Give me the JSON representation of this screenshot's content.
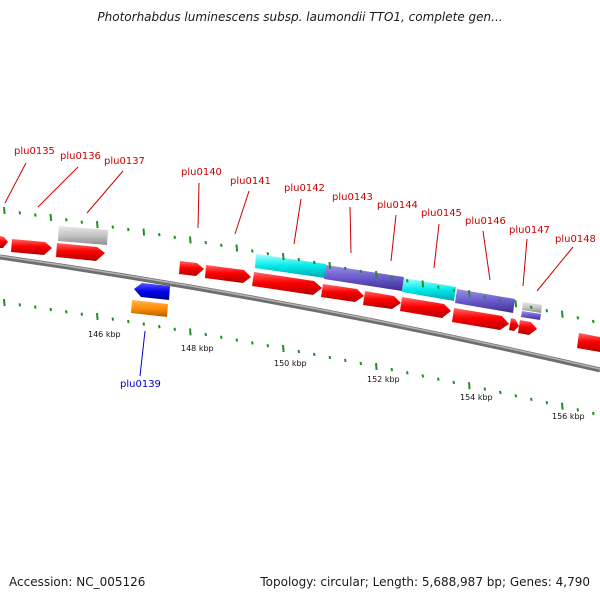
{
  "title": "Photorhabdus luminescens subsp. laumondii TTO1, complete gen...",
  "footer": {
    "accession": "Accession: NC_005126",
    "stats": "Topology: circular; Length: 5,688,987 bp; Genes: 4,790"
  },
  "colors": {
    "backbone": "#808080",
    "cds_red": "#ff1a1a",
    "cds_gray": "#c8c8c8",
    "cds_blue": "#0000ee",
    "cds_orange": "#ff8c00",
    "cds_cyan": "#00e5ee",
    "cds_purple": "#6a5acd",
    "label_red": "#cc0000",
    "label_blue": "#0000cc",
    "tick": "#008000"
  },
  "scale_labels": [
    "146 kbp",
    "148 kbp",
    "150 kbp",
    "152 kbp",
    "154 kbp",
    "156 kbp"
  ],
  "gene_labels": [
    {
      "id": "plu0135",
      "color": "label_red"
    },
    {
      "id": "plu0136",
      "color": "label_red"
    },
    {
      "id": "plu0137",
      "color": "label_red"
    },
    {
      "id": "plu0139",
      "color": "label_blue"
    },
    {
      "id": "plu0140",
      "color": "label_red"
    },
    {
      "id": "plu0141",
      "color": "label_red"
    },
    {
      "id": "plu0142",
      "color": "label_red"
    },
    {
      "id": "plu0143",
      "color": "label_red"
    },
    {
      "id": "plu0144",
      "color": "label_red"
    },
    {
      "id": "plu0145",
      "color": "label_red"
    },
    {
      "id": "plu0146",
      "color": "label_red"
    },
    {
      "id": "plu0147",
      "color": "label_red"
    },
    {
      "id": "plu0148",
      "color": "label_red"
    }
  ]
}
